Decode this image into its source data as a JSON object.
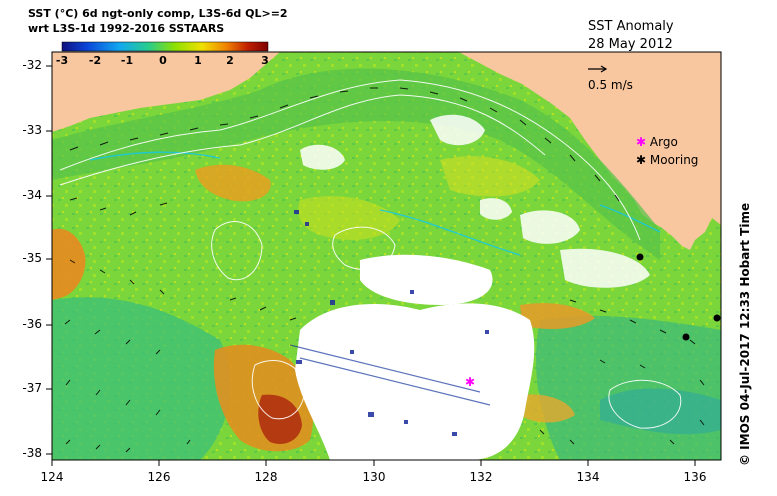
{
  "header": {
    "line1": "SST (°C) 6d ngt-only comp, L3S-6d QL>=2",
    "line2": "wrt L3S-1d 1992-2016 SSTAARS"
  },
  "colorbar": {
    "ticks": [
      "-3",
      "-2",
      "-1",
      "0",
      "1",
      "2",
      "3"
    ],
    "colors": [
      "#10107e",
      "#0a44d8",
      "#12a8f0",
      "#29cc8c",
      "#8fe000",
      "#f0e000",
      "#f08000",
      "#c02000",
      "#7e0000"
    ]
  },
  "title": {
    "name": "SST Anomaly",
    "date": "28 May 2012"
  },
  "scale": {
    "label": "0.5 m/s"
  },
  "legend": [
    {
      "symbol": "✱",
      "label": "Argo",
      "color": "#ff00ff"
    },
    {
      "symbol": "✱",
      "label": "Mooring",
      "color": "#000000"
    }
  ],
  "axes": {
    "x_ticks": [
      "124",
      "126",
      "128",
      "130",
      "132",
      "134",
      "136"
    ],
    "y_ticks": [
      "-32",
      "-33",
      "-34",
      "-35",
      "-36",
      "-37",
      "-38"
    ]
  },
  "credit": "©  IMOS 04-Jul-2017 12:33 Hobart Time",
  "colors": {
    "land": "#f9c79f",
    "ocean_base": "#7ad63a",
    "missing": "#ffffff",
    "argo": "#ff00ff",
    "mooring": "#000000"
  }
}
